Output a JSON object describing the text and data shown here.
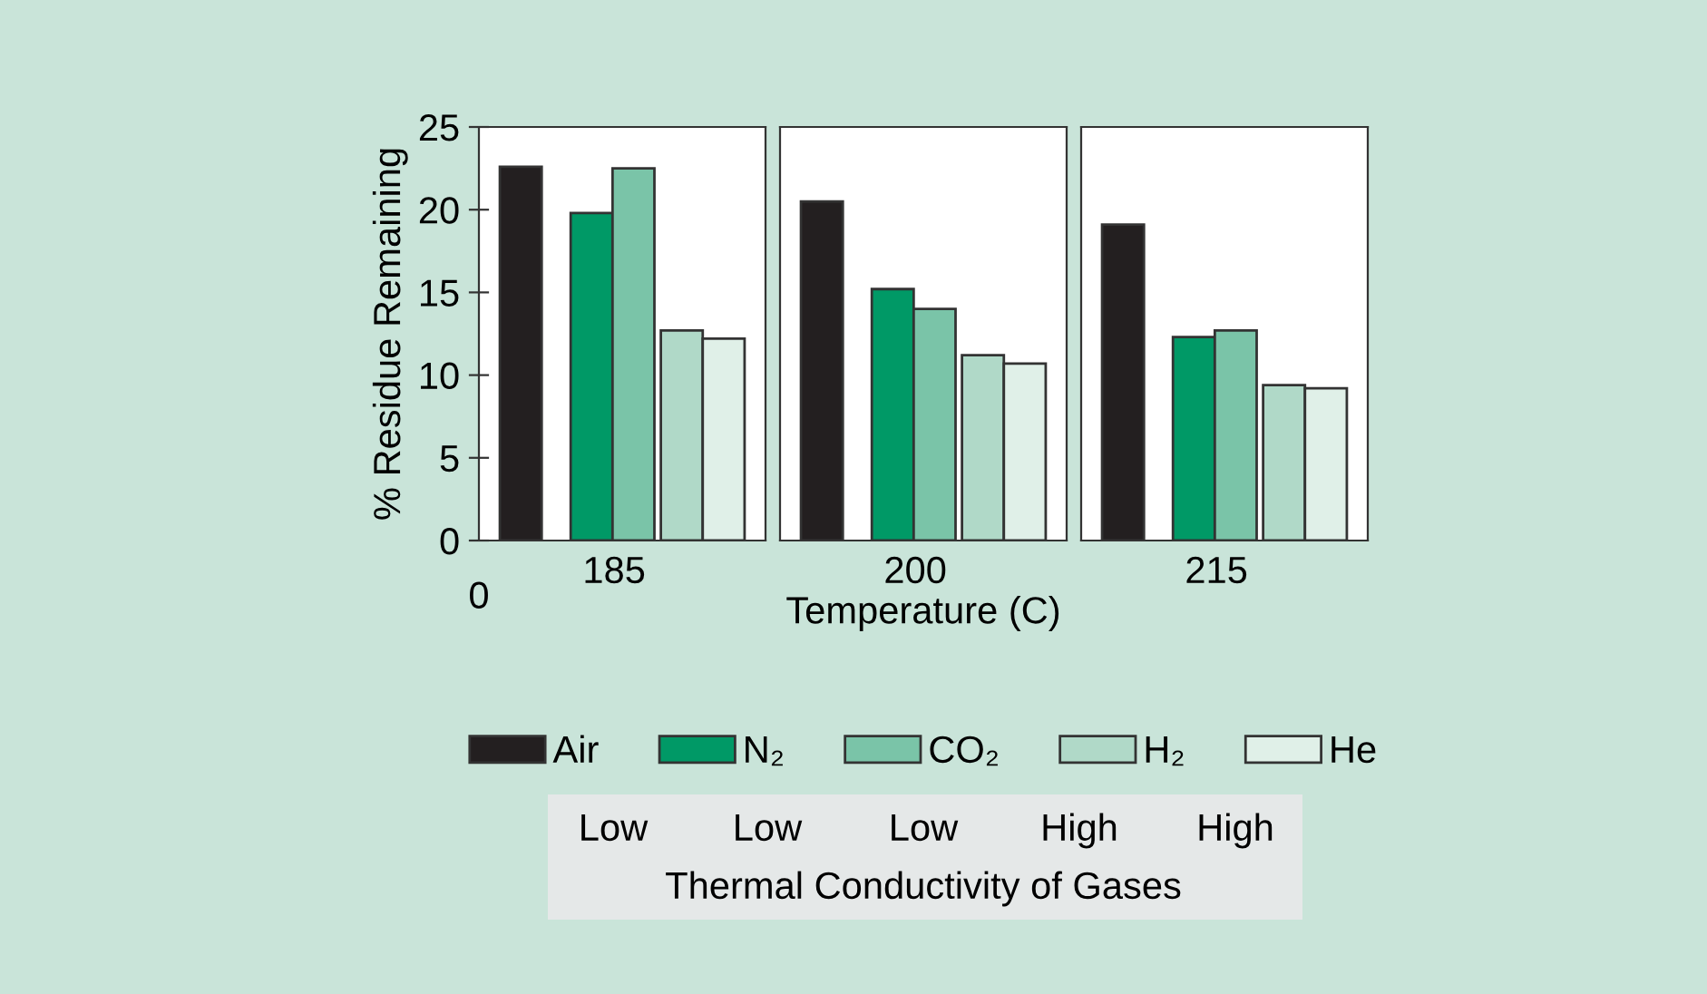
{
  "chart_data": [
    {
      "type": "bar",
      "categories": [
        "185"
      ],
      "ylabel": "% Residue Remaining",
      "ylim": [
        0,
        25
      ],
      "yticks": [
        0,
        5,
        10,
        15,
        20,
        25
      ],
      "legend": "bottom",
      "series": [
        {
          "name": "Air",
          "color": "#231f20",
          "values": [
            22.6
          ]
        },
        {
          "name": "N₂",
          "color": "#009966",
          "values": [
            19.8
          ]
        },
        {
          "name": "CO₂",
          "color": "#7ac4a8",
          "values": [
            22.5
          ]
        },
        {
          "name": "H₂",
          "color": "#b0d9c8",
          "values": [
            12.7
          ]
        },
        {
          "name": "He",
          "color": "#e0f0e8",
          "values": [
            12.2
          ]
        }
      ],
      "annotations": [
        "0",
        "Low",
        "Low",
        "Low",
        "High",
        "High",
        "Thermal Conductivity of Gases"
      ]
    },
    {
      "type": "bar",
      "categories": [
        "200"
      ],
      "xlabel": "Temperature (C)",
      "ylim": [
        0,
        25
      ],
      "tick_labels": "x",
      "series": [
        {
          "color": "#231f20",
          "values": [
            20.5
          ]
        },
        {
          "color": "#009966",
          "values": [
            15.2
          ]
        },
        {
          "color": "#7ac4a8",
          "values": [
            14.0
          ]
        },
        {
          "color": "#b0d9c8",
          "values": [
            11.2
          ]
        },
        {
          "color": "#e0f0e8",
          "values": [
            10.7
          ]
        }
      ]
    },
    {
      "type": "bar",
      "categories": [
        "215"
      ],
      "ylim": [
        0,
        25
      ],
      "tick_labels": "x",
      "series": [
        {
          "color": "#231f20",
          "values": [
            19.1
          ]
        },
        {
          "color": "#009966",
          "values": [
            12.3
          ]
        },
        {
          "color": "#7ac4a8",
          "values": [
            12.7
          ]
        },
        {
          "color": "#b0d9c8",
          "values": [
            9.4
          ]
        },
        {
          "color": "#e0f0e8",
          "values": [
            9.2
          ]
        }
      ]
    }
  ]
}
